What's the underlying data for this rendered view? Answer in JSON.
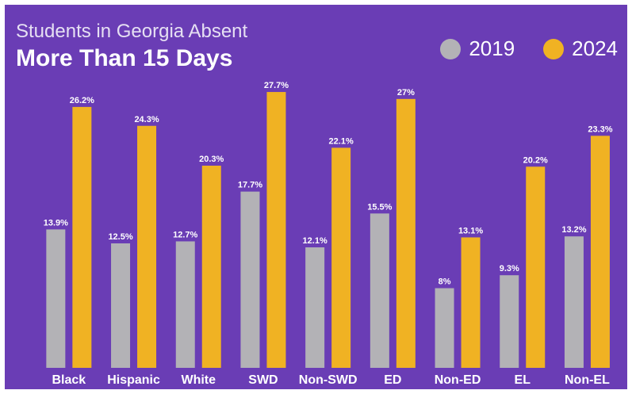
{
  "chart_data": {
    "type": "bar",
    "subtitle": "Students in Georgia Absent",
    "title": "More Than 15 Days",
    "categories": [
      "Black",
      "Hispanic",
      "White",
      "SWD",
      "Non-SWD",
      "ED",
      "Non-ED",
      "EL",
      "Non-EL"
    ],
    "series": [
      {
        "name": "2019",
        "color": "#b3b2b6",
        "values": [
          13.9,
          12.5,
          12.7,
          17.7,
          12.1,
          15.5,
          8,
          9.3,
          13.2
        ],
        "labels": [
          "13.9%",
          "12.5%",
          "12.7%",
          "17.7%",
          "12.1%",
          "15.5%",
          "8%",
          "9.3%",
          "13.2%"
        ]
      },
      {
        "name": "2024",
        "color": "#f0b223",
        "values": [
          26.2,
          24.3,
          20.3,
          27.7,
          22.1,
          27,
          13.1,
          20.2,
          23.3
        ],
        "labels": [
          "26.2%",
          "24.3%",
          "20.3%",
          "27.7%",
          "22.1%",
          "27%",
          "13.1%",
          "20.2%",
          "23.3%"
        ]
      }
    ],
    "ylim": [
      0,
      28.5
    ],
    "legend": "top-right",
    "grid": false
  }
}
